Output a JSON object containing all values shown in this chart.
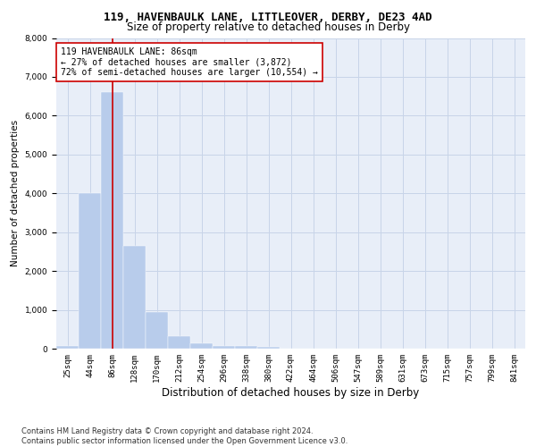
{
  "title1": "119, HAVENBAULK LANE, LITTLEOVER, DERBY, DE23 4AD",
  "title2": "Size of property relative to detached houses in Derby",
  "xlabel": "Distribution of detached houses by size in Derby",
  "ylabel": "Number of detached properties",
  "bin_labels": [
    "25sqm",
    "44sqm",
    "86sqm",
    "128sqm",
    "170sqm",
    "212sqm",
    "254sqm",
    "296sqm",
    "338sqm",
    "380sqm",
    "422sqm",
    "464sqm",
    "506sqm",
    "547sqm",
    "589sqm",
    "631sqm",
    "673sqm",
    "715sqm",
    "757sqm",
    "799sqm",
    "841sqm"
  ],
  "bar_values": [
    75,
    4000,
    6600,
    2650,
    950,
    325,
    140,
    80,
    70,
    50,
    0,
    0,
    0,
    0,
    0,
    0,
    0,
    0,
    0,
    0,
    0
  ],
  "bar_color": "#b8cceb",
  "bar_edge_color": "#b8cceb",
  "grid_color": "#c8d4e8",
  "background_color": "#e8eef8",
  "vline_bin_index": 2,
  "vline_color": "#cc0000",
  "annotation_text": "119 HAVENBAULK LANE: 86sqm\n← 27% of detached houses are smaller (3,872)\n72% of semi-detached houses are larger (10,554) →",
  "annotation_box_color": "#ffffff",
  "annotation_border_color": "#cc0000",
  "ylim": [
    0,
    8000
  ],
  "yticks": [
    0,
    1000,
    2000,
    3000,
    4000,
    5000,
    6000,
    7000,
    8000
  ],
  "footer": "Contains HM Land Registry data © Crown copyright and database right 2024.\nContains public sector information licensed under the Open Government Licence v3.0.",
  "title1_fontsize": 9,
  "title2_fontsize": 8.5,
  "xlabel_fontsize": 8.5,
  "ylabel_fontsize": 7.5,
  "tick_fontsize": 6.5,
  "annotation_fontsize": 7,
  "footer_fontsize": 6
}
